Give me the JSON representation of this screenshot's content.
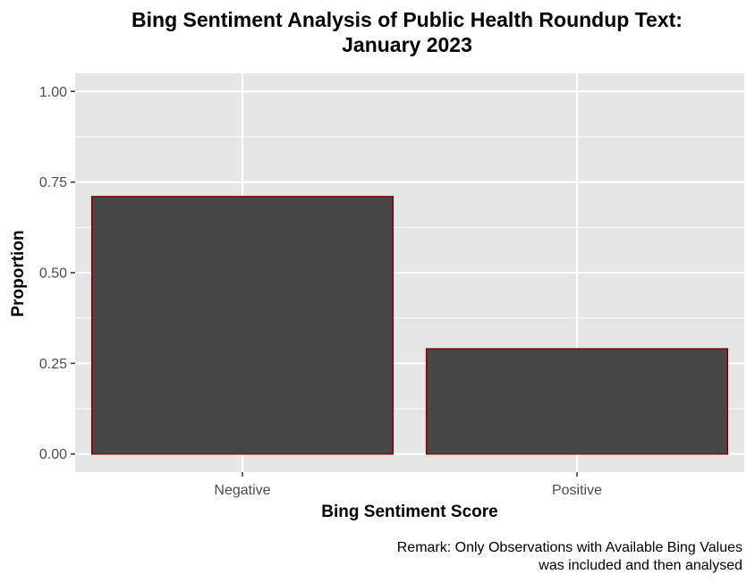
{
  "chart_data": {
    "type": "bar",
    "title": [
      "Bing Sentiment Analysis of Public Health Roundup Text:",
      "January 2023"
    ],
    "xlabel": "Bing Sentiment Score",
    "ylabel": "Proportion",
    "categories": [
      "Negative",
      "Positive"
    ],
    "values": [
      0.71,
      0.29
    ],
    "ylim": [
      -0.05,
      1.05
    ],
    "yticks": [
      0.0,
      0.25,
      0.5,
      0.75,
      1.0
    ],
    "ytick_labels": [
      "0.00",
      "0.25",
      "0.50",
      "0.75",
      "1.00"
    ],
    "grid": true,
    "colors": {
      "panel": "#e5e5e5",
      "grid": "#ffffff",
      "bar_fill": "#474747",
      "bar_outline": "#800000",
      "tick_text": "#4d4d4d",
      "tick_mark": "#333333"
    },
    "caption": [
      "Remark: Only Observations with Available Bing Values",
      "was included and then analysed"
    ]
  }
}
